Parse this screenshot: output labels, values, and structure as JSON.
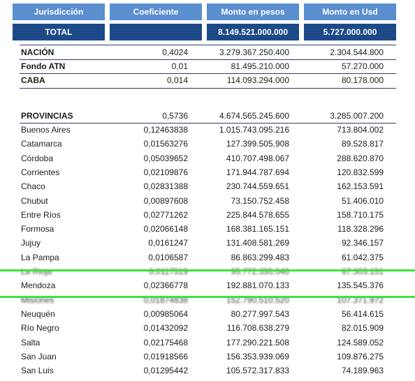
{
  "headers": [
    "Jurisdicción",
    "Coeficiente",
    "Monto en pesos",
    "Monto en Usd"
  ],
  "total": {
    "label": "TOTAL",
    "coef": "",
    "pesos": "8.149.521.000.000",
    "usd": "5.727.000.000"
  },
  "top_rows": [
    {
      "name": "NACIÓN",
      "coef": "0,4024",
      "pesos": "3.279.367.250.400",
      "usd": "2.304.544.800"
    },
    {
      "name": "Fondo ATN",
      "coef": "0,01",
      "pesos": "81.495.210.000",
      "usd": "57.270.000"
    },
    {
      "name": "CABA",
      "coef": "0,014",
      "pesos": "114.093.294.000",
      "usd": "80.178.000"
    }
  ],
  "provincias_total": {
    "name": "PROVINCIAS",
    "coef": "0,5736",
    "pesos": "4.674.565.245.600",
    "usd": "3.285.007.200"
  },
  "provincias": [
    {
      "name": "Buenos Aires",
      "coef": "0,12463838",
      "pesos": "1.015.743.095.216",
      "usd": "713.804.002"
    },
    {
      "name": "Catamarca",
      "coef": "0,01563276",
      "pesos": "127.399.505.908",
      "usd": "89.528.817"
    },
    {
      "name": "Córdoba",
      "coef": "0,05039652",
      "pesos": "410.707.498.067",
      "usd": "288.620.870"
    },
    {
      "name": "Corrientes",
      "coef": "0,02109876",
      "pesos": "171.944.787.694",
      "usd": "120.832.599"
    },
    {
      "name": "Chaco",
      "coef": "0,02831388",
      "pesos": "230.744.559.651",
      "usd": "162.153.591"
    },
    {
      "name": "Chubut",
      "coef": "0,00897608",
      "pesos": "73.150.752.458",
      "usd": "51.406.010"
    },
    {
      "name": "Entre Ríos",
      "coef": "0,02771262",
      "pesos": "225.844.578.655",
      "usd": "158.710.175"
    },
    {
      "name": "Formosa",
      "coef": "0,02066148",
      "pesos": "168.381.165.151",
      "usd": "118.328.296"
    },
    {
      "name": "Jujuy",
      "coef": "0,0161247",
      "pesos": "131.408.581.269",
      "usd": "92.346.157"
    },
    {
      "name": "La Pampa",
      "coef": "0,0106587",
      "pesos": "86.863.299.483",
      "usd": "61.042.375"
    },
    {
      "name": "La Rioja",
      "coef": "0,0117519",
      "pesos": "95.772.355.040",
      "usd": "67.303.151"
    },
    {
      "name": "Mendoza",
      "coef": "0,02366778",
      "pesos": "192.881.070.133",
      "usd": "135.545.376"
    },
    {
      "name": "Misiones",
      "coef": "0,01874838",
      "pesos": "152.790.510.520",
      "usd": "107.371.972"
    },
    {
      "name": "Neuquén",
      "coef": "0,00985064",
      "pesos": "80.277.997.543",
      "usd": "56.414.615"
    },
    {
      "name": "Río Negro",
      "coef": "0,01432092",
      "pesos": "116.708.638.279",
      "usd": "82.015.909"
    },
    {
      "name": "Salta",
      "coef": "0,02175468",
      "pesos": "177.290.221.508",
      "usd": "124.589.052"
    },
    {
      "name": "San Juan",
      "coef": "0,01918566",
      "pesos": "156.353.939.069",
      "usd": "109.876.275"
    },
    {
      "name": "San Luis",
      "coef": "0,01295442",
      "pesos": "105.572.317.833",
      "usd": "74.189.963"
    }
  ],
  "colors": {
    "header_bg": "#5a8fd0",
    "total_bg": "#1c4a88",
    "highlight_line": "#3ee23e"
  }
}
